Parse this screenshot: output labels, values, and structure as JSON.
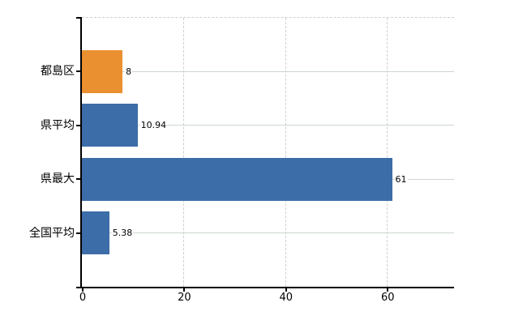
{
  "chart_data": {
    "type": "bar",
    "orientation": "horizontal",
    "title": "",
    "xlabel": "",
    "ylabel": "",
    "categories": [
      "都島区",
      "県平均",
      "県最大",
      "全国平均"
    ],
    "values": [
      8,
      10.94,
      61,
      5.38
    ],
    "value_labels": [
      "8",
      "10.94",
      "61",
      "5.38"
    ],
    "bar_colors": [
      "#EA9030",
      "#3C6DA8",
      "#3C6DA8",
      "#3C6DA8"
    ],
    "x_ticks": [
      0,
      20,
      40,
      60
    ],
    "x_tick_labels": [
      "0",
      "20",
      "40",
      "60"
    ],
    "xlim": [
      0,
      73.2
    ],
    "grid": true,
    "legend": false
  },
  "colors": {
    "bar_blue": "#3C6DA8",
    "bar_orange": "#EA9030",
    "axis": "#000000",
    "text": "#000000",
    "dashed_grid": "#cfcfcf",
    "category_line": "#ccd6cc",
    "background": "#ffffff"
  }
}
